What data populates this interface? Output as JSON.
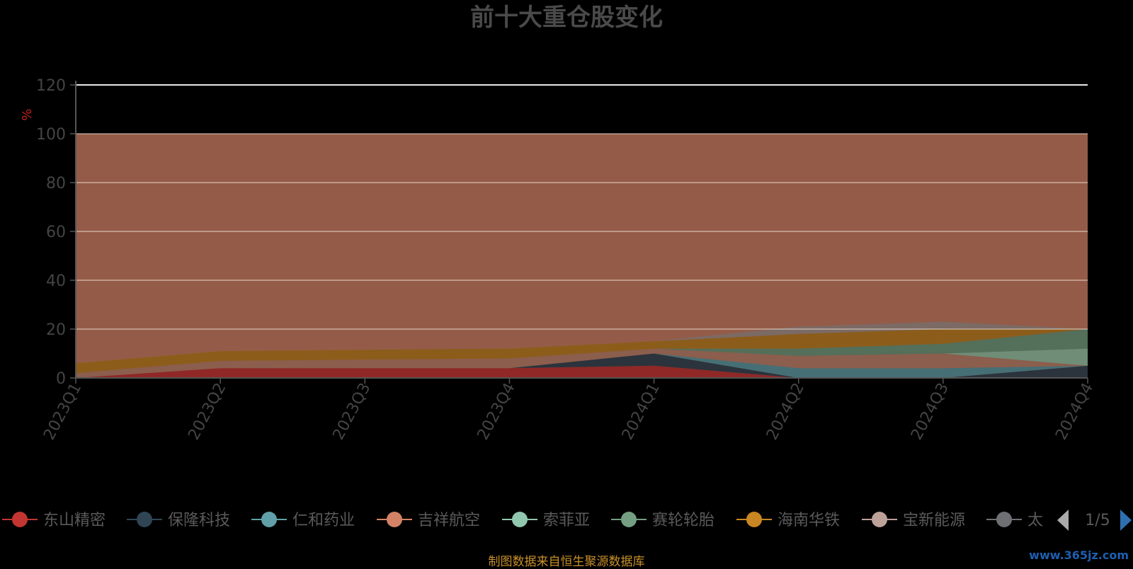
{
  "chart_data": {
    "type": "area",
    "title": "前十大重仓股变化",
    "ylabel": "%",
    "ylim": [
      0,
      120
    ],
    "yticks": [
      0,
      20,
      40,
      60,
      80,
      100,
      120
    ],
    "grid": true,
    "stacked": true,
    "categories": [
      "2023Q1",
      "2023Q2",
      "2023Q3",
      "2023Q4",
      "2024Q1",
      "2024Q2",
      "2024Q3",
      "2024Q4"
    ],
    "series": [
      {
        "name": "东山精密",
        "color": "#8e2525",
        "values": [
          0,
          4,
          4,
          4,
          5,
          0,
          0,
          0
        ]
      },
      {
        "name": "保隆科技",
        "color": "#25303c",
        "values": [
          0,
          0,
          0,
          0,
          5,
          0,
          0,
          5
        ]
      },
      {
        "name": "仁和药业",
        "color": "#407078",
        "values": [
          0,
          0,
          0,
          0,
          0,
          4,
          4,
          0
        ]
      },
      {
        "name": "吉祥航空",
        "color": "#8a5e4e",
        "values": [
          2,
          3,
          3.5,
          4,
          2,
          5,
          6,
          0
        ]
      },
      {
        "name": "索菲亚",
        "color": "#6d8f7a",
        "values": [
          0,
          0,
          0,
          0,
          0,
          0,
          0,
          7
        ]
      },
      {
        "name": "赛轮轮胎",
        "color": "#50705c",
        "values": [
          0,
          0,
          0,
          0,
          0,
          3,
          4,
          8
        ]
      },
      {
        "name": "海南华铁",
        "color": "#8b5d18",
        "values": [
          4,
          4,
          4,
          4,
          3,
          6,
          6,
          0
        ]
      },
      {
        "name": "宝新能源",
        "color": "#7a6a66",
        "values": [
          0,
          0,
          0,
          0,
          0,
          3,
          3,
          0
        ]
      },
      {
        "name": "太"
      }
    ]
  },
  "legend": {
    "items": [
      {
        "label": "东山精密",
        "color": "#c23531"
      },
      {
        "label": "保隆科技",
        "color": "#2f4554"
      },
      {
        "label": "仁和药业",
        "color": "#61a0a8"
      },
      {
        "label": "吉祥航空",
        "color": "#d48265"
      },
      {
        "label": "索菲亚",
        "color": "#91c7ae"
      },
      {
        "label": "赛轮轮胎",
        "color": "#749f83"
      },
      {
        "label": "海南华铁",
        "color": "#ca8622"
      },
      {
        "label": "宝新能源",
        "color": "#bda29a"
      },
      {
        "label": "太",
        "color": "#6e7074"
      }
    ],
    "page": "1/5"
  },
  "footer": {
    "source": "制图数据来自恒生聚源数据库",
    "watermark": "www.365jz.com"
  }
}
